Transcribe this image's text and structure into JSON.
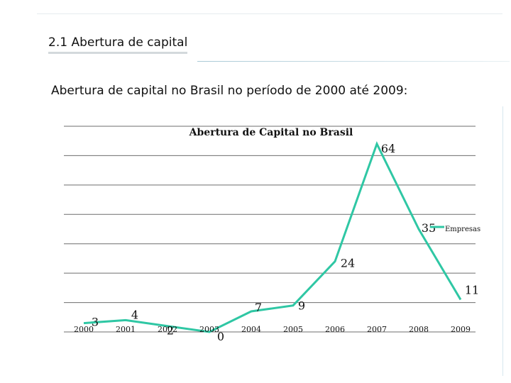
{
  "slide": {
    "section_title": "2.1 Abertura de capital",
    "subtitle": "Abertura de capital no Brasil no período de 2000 até 2009:"
  },
  "colors": {
    "series_line": "#2fc7a4",
    "gridline": "#6e6e6e",
    "text": "#111111"
  },
  "chart_data": {
    "type": "line",
    "title": "Abertura de Capital no Brasil",
    "xlabel": "",
    "ylabel": "",
    "x": [
      "2000",
      "2001",
      "2002",
      "2003",
      "2004",
      "2005",
      "2006",
      "2007",
      "2008",
      "2009"
    ],
    "series": [
      {
        "name": "Empresas",
        "values": [
          3,
          4,
          2,
          0,
          7,
          9,
          24,
          64,
          35,
          11
        ]
      }
    ],
    "ylim": [
      0,
      70
    ],
    "grid": true,
    "y_tick_labels_shown": false,
    "legend_position": "right"
  }
}
